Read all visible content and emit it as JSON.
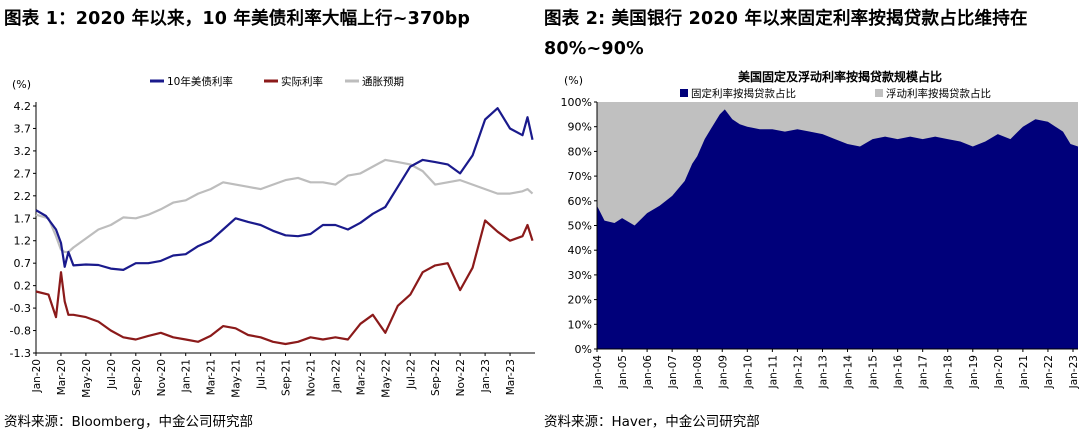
{
  "chart_data": [
    {
      "type": "line",
      "title": "图表 1：2020 年以来，10 年美债利率大幅上行~370bp",
      "ylabel": "(%)",
      "ylim": [
        -1.3,
        4.2
      ],
      "yticks": [
        "4.2",
        "3.7",
        "3.2",
        "2.7",
        "2.2",
        "1.7",
        "1.2",
        "0.7",
        "0.2",
        "-0.3",
        "-0.8",
        "-1.3"
      ],
      "xticks": [
        "Jan-20",
        "Mar-20",
        "May-20",
        "Jul-20",
        "Sep-20",
        "Nov-20",
        "Jan-21",
        "Mar-21",
        "May-21",
        "Jul-21",
        "Sep-21",
        "Nov-21",
        "Jan-22",
        "Mar-22",
        "May-22",
        "Jul-22",
        "Sep-22",
        "Nov-22",
        "Jan-23",
        "Mar-23"
      ],
      "grid": false,
      "legend": "top",
      "series": [
        {
          "name": "10年美债利率",
          "color": "#1a1a8c",
          "x": [
            0,
            0.8,
            1.6,
            2.0,
            2.3,
            2.6,
            3.0,
            4,
            5,
            6,
            7,
            8,
            9,
            10,
            11,
            12,
            13,
            14,
            15,
            16,
            17,
            18,
            19,
            20,
            21,
            22,
            23,
            24,
            25,
            26,
            27,
            28,
            29,
            30,
            31,
            32,
            33,
            34,
            35,
            36,
            37,
            38,
            39,
            39.4,
            39.8
          ],
          "values": [
            1.88,
            1.75,
            1.45,
            1.15,
            0.62,
            0.95,
            0.65,
            0.67,
            0.66,
            0.58,
            0.55,
            0.7,
            0.7,
            0.75,
            0.87,
            0.9,
            1.08,
            1.2,
            1.45,
            1.7,
            1.62,
            1.55,
            1.42,
            1.32,
            1.3,
            1.35,
            1.55,
            1.55,
            1.45,
            1.6,
            1.8,
            1.95,
            2.4,
            2.85,
            3.0,
            2.95,
            2.9,
            2.7,
            3.1,
            3.9,
            4.15,
            3.7,
            3.55,
            3.95,
            3.45
          ]
        },
        {
          "name": "实际利率",
          "color": "#8b1a1a",
          "x": [
            0,
            1.0,
            1.6,
            2.0,
            2.3,
            2.6,
            3.0,
            4,
            5,
            6,
            7,
            8,
            9,
            10,
            11,
            12,
            13,
            14,
            15,
            16,
            17,
            18,
            19,
            20,
            21,
            22,
            23,
            24,
            25,
            26,
            27,
            28,
            29,
            30,
            31,
            32,
            33,
            34,
            35,
            36,
            37,
            38,
            39,
            39.4,
            39.8
          ],
          "values": [
            0.07,
            0.0,
            -0.5,
            0.5,
            -0.15,
            -0.45,
            -0.45,
            -0.5,
            -0.6,
            -0.8,
            -0.95,
            -1.0,
            -0.92,
            -0.85,
            -0.95,
            -1.0,
            -1.05,
            -0.92,
            -0.7,
            -0.75,
            -0.9,
            -0.95,
            -1.05,
            -1.1,
            -1.05,
            -0.95,
            -1.0,
            -0.95,
            -1.0,
            -0.65,
            -0.45,
            -0.85,
            -0.25,
            0.0,
            0.5,
            0.65,
            0.7,
            0.1,
            0.6,
            1.65,
            1.4,
            1.2,
            1.3,
            1.55,
            1.2
          ]
        },
        {
          "name": "通胀预期",
          "color": "#bdbdbd",
          "x": [
            0,
            1.0,
            1.6,
            2.0,
            2.3,
            2.6,
            3.0,
            4,
            5,
            6,
            7,
            8,
            9,
            10,
            11,
            12,
            13,
            14,
            15,
            16,
            17,
            18,
            19,
            20,
            21,
            22,
            23,
            24,
            25,
            26,
            27,
            28,
            29,
            30,
            31,
            32,
            33,
            34,
            35,
            36,
            37,
            38,
            39,
            39.4,
            39.8
          ],
          "values": [
            1.78,
            1.7,
            1.3,
            1.0,
            0.95,
            0.95,
            1.05,
            1.25,
            1.45,
            1.55,
            1.72,
            1.7,
            1.78,
            1.9,
            2.05,
            2.1,
            2.25,
            2.35,
            2.5,
            2.45,
            2.4,
            2.35,
            2.45,
            2.55,
            2.6,
            2.5,
            2.5,
            2.45,
            2.65,
            2.7,
            2.85,
            3.0,
            2.95,
            2.9,
            2.75,
            2.45,
            2.5,
            2.55,
            2.45,
            2.35,
            2.25,
            2.25,
            2.3,
            2.35,
            2.25
          ]
        }
      ]
    },
    {
      "type": "area",
      "title": "图表 2: 美国银行 2020 年以来固定利率按揭贷款占比维持在 80%~90%",
      "chart_title": "美国固定及浮动利率按揭贷款规模占比",
      "ylabel": "(%)",
      "ylim": [
        0,
        100
      ],
      "yticks": [
        "100%",
        "90%",
        "80%",
        "70%",
        "60%",
        "50%",
        "40%",
        "30%",
        "20%",
        "10%",
        "0%"
      ],
      "xticks": [
        "Jan-04",
        "Jan-05",
        "Jan-06",
        "Jan-07",
        "Jan-08",
        "Jan-09",
        "Jan-10",
        "Jan-11",
        "Jan-12",
        "Jan-13",
        "Jan-14",
        "Jan-15",
        "Jan-16",
        "Jan-17",
        "Jan-18",
        "Jan-19",
        "Jan-20",
        "Jan-21",
        "Jan-22",
        "Jan-23"
      ],
      "legend": "top",
      "stacked": true,
      "x_years": [
        2004.0,
        2004.3,
        2004.7,
        2005.0,
        2005.5,
        2006.0,
        2006.5,
        2007.0,
        2007.5,
        2007.8,
        2008.0,
        2008.3,
        2008.6,
        2008.9,
        2009.1,
        2009.4,
        2009.7,
        2010.0,
        2010.5,
        2011.0,
        2011.5,
        2012.0,
        2012.5,
        2013.0,
        2013.5,
        2014.0,
        2014.5,
        2015.0,
        2015.5,
        2016.0,
        2016.5,
        2017.0,
        2017.5,
        2018.0,
        2018.5,
        2019.0,
        2019.5,
        2020.0,
        2020.5,
        2021.0,
        2021.5,
        2022.0,
        2022.3,
        2022.6,
        2022.9,
        2023.2
      ],
      "series": [
        {
          "name": "固定利率按揭贷款占比",
          "color": "#00007a",
          "values": [
            58,
            52,
            51,
            53,
            50,
            55,
            58,
            62,
            68,
            75,
            78,
            85,
            90,
            95,
            97,
            93,
            91,
            90,
            89,
            89,
            88,
            89,
            88,
            87,
            85,
            83,
            82,
            85,
            86,
            85,
            86,
            85,
            86,
            85,
            84,
            82,
            84,
            87,
            85,
            90,
            93,
            92,
            90,
            88,
            83,
            82
          ]
        },
        {
          "name": "浮动利率按揭贷款占比",
          "color": "#c0c0c0",
          "values": [
            42,
            48,
            49,
            47,
            50,
            45,
            42,
            38,
            32,
            25,
            22,
            15,
            10,
            5,
            3,
            7,
            9,
            10,
            11,
            11,
            12,
            11,
            12,
            13,
            15,
            17,
            18,
            15,
            14,
            15,
            14,
            15,
            14,
            15,
            16,
            18,
            16,
            13,
            15,
            10,
            7,
            8,
            10,
            12,
            17,
            18
          ]
        }
      ]
    }
  ],
  "sources": [
    "资料来源：Bloomberg，中金公司研究部",
    "资料来源：Haver，中金公司研究部"
  ]
}
